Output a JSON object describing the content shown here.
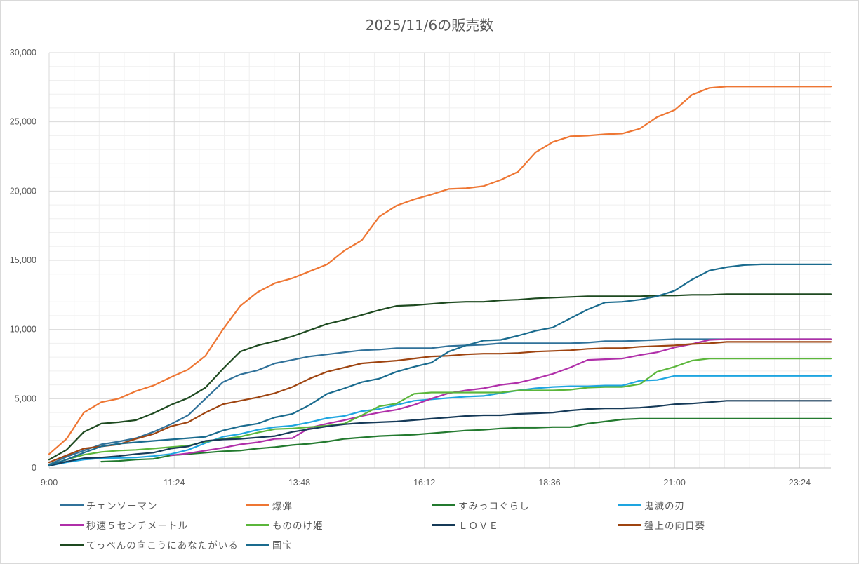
{
  "chart_data": {
    "type": "line",
    "title": "2025/11/6の販売数",
    "xlabel": "",
    "ylabel": "",
    "ylim": [
      0,
      30000
    ],
    "yticks": [
      "0",
      "5,000",
      "10,000",
      "15,000",
      "20,000",
      "25,000",
      "30,000"
    ],
    "xticks": [
      "9:00",
      "11:24",
      "13:48",
      "16:12",
      "18:36",
      "21:00",
      "23:24"
    ],
    "xlim": [
      "9:00",
      "24:00"
    ],
    "grid": true,
    "legend_position": "bottom",
    "x": [
      "9:00",
      "9:20",
      "9:40",
      "10:00",
      "10:20",
      "10:40",
      "11:00",
      "11:20",
      "11:40",
      "12:00",
      "12:20",
      "12:40",
      "13:00",
      "13:20",
      "13:40",
      "14:00",
      "14:20",
      "14:40",
      "15:00",
      "15:20",
      "15:40",
      "16:00",
      "16:20",
      "16:40",
      "17:00",
      "17:20",
      "17:40",
      "18:00",
      "18:20",
      "18:40",
      "19:00",
      "19:20",
      "19:40",
      "20:00",
      "20:20",
      "20:40",
      "21:00",
      "21:20",
      "21:40",
      "22:00",
      "22:20",
      "22:40",
      "23:00",
      "23:20",
      "23:40",
      "24:00"
    ],
    "series": [
      {
        "name": "チェンソーマン",
        "color": "#31729a",
        "values": [
          250,
          800,
          1250,
          1700,
          1900,
          2150,
          2600,
          3150,
          3800,
          5000,
          6200,
          6750,
          7050,
          7550,
          7800,
          8050,
          8200,
          8350,
          8500,
          8550,
          8650,
          8650,
          8650,
          8800,
          8850,
          8900,
          9000,
          9000,
          9000,
          9000,
          9000,
          9050,
          9150,
          9150,
          9200,
          9250,
          9300,
          9300,
          9300,
          9300,
          9300,
          9300,
          9300,
          9300,
          9300,
          9300
        ]
      },
      {
        "name": "爆弾",
        "color": "#ee7633",
        "values": [
          1000,
          2100,
          4000,
          4750,
          5000,
          5550,
          5950,
          6550,
          7100,
          8100,
          10000,
          11700,
          12700,
          13350,
          13700,
          14200,
          14700,
          15700,
          16450,
          18150,
          18950,
          19400,
          19750,
          20150,
          20200,
          20350,
          20800,
          21400,
          22800,
          23550,
          23950,
          24000,
          24100,
          24150,
          24500,
          25350,
          25850,
          26950,
          27450,
          27550,
          27550,
          27550,
          27550,
          27550,
          27550,
          27550
        ]
      },
      {
        "name": "すみっコぐらし",
        "color": "#237a2f",
        "values": [
          null,
          null,
          null,
          450,
          500,
          600,
          650,
          900,
          1000,
          1100,
          1200,
          1250,
          1400,
          1500,
          1650,
          1750,
          1900,
          2100,
          2200,
          2300,
          2350,
          2400,
          2500,
          2600,
          2700,
          2750,
          2850,
          2900,
          2900,
          2950,
          2950,
          3200,
          3350,
          3500,
          3550,
          3550,
          3550,
          3550,
          3550,
          3550,
          3550,
          3550,
          3550,
          3550,
          3550,
          3550
        ]
      },
      {
        "name": "鬼滅の刃",
        "color": "#1ea5e0",
        "values": [
          150,
          400,
          600,
          700,
          720,
          750,
          850,
          1000,
          1300,
          1800,
          2250,
          2450,
          2750,
          2950,
          3050,
          3300,
          3600,
          3750,
          4100,
          4250,
          4550,
          4850,
          4950,
          5050,
          5150,
          5200,
          5400,
          5600,
          5750,
          5850,
          5900,
          5900,
          5950,
          5950,
          6300,
          6350,
          6650,
          6650,
          6650,
          6650,
          6650,
          6650,
          6650,
          6650,
          6650,
          6650
        ]
      },
      {
        "name": "秒速５センチメートル",
        "color": "#b02fa9",
        "values": [
          null,
          null,
          null,
          null,
          null,
          null,
          null,
          900,
          1050,
          1250,
          1450,
          1700,
          1850,
          2100,
          2150,
          2900,
          3200,
          3450,
          3750,
          4000,
          4200,
          4550,
          5000,
          5400,
          5600,
          5750,
          6000,
          6150,
          6450,
          6800,
          7250,
          7800,
          7850,
          7900,
          8150,
          8350,
          8700,
          8950,
          9250,
          9300,
          9300,
          9300,
          9300,
          9300,
          9300,
          9300
        ]
      },
      {
        "name": "もののけ姫",
        "color": "#5bb63b",
        "values": [
          200,
          600,
          950,
          1150,
          1250,
          1300,
          1400,
          1500,
          1600,
          1900,
          2100,
          2250,
          2550,
          2800,
          2850,
          2950,
          3050,
          3200,
          3800,
          4450,
          4650,
          5350,
          5450,
          5450,
          5450,
          5450,
          5450,
          5600,
          5600,
          5600,
          5650,
          5800,
          5850,
          5850,
          6050,
          6950,
          7300,
          7750,
          7900,
          7900,
          7900,
          7900,
          7900,
          7900,
          7900,
          7900
        ]
      },
      {
        "name": "ＬＯＶＥ",
        "color": "#163a58",
        "values": [
          150,
          450,
          700,
          750,
          850,
          1000,
          1100,
          1400,
          1550,
          1950,
          2050,
          2100,
          2200,
          2300,
          2600,
          2800,
          3000,
          3150,
          3250,
          3300,
          3350,
          3450,
          3550,
          3650,
          3750,
          3800,
          3800,
          3900,
          3950,
          4000,
          4150,
          4250,
          4300,
          4300,
          4350,
          4450,
          4600,
          4650,
          4750,
          4850,
          4850,
          4850,
          4850,
          4850,
          4850,
          4850
        ]
      },
      {
        "name": "盤上の向日葵",
        "color": "#9e4410",
        "values": [
          400,
          900,
          1400,
          1550,
          1700,
          2100,
          2450,
          3000,
          3300,
          4000,
          4600,
          4850,
          5100,
          5400,
          5850,
          6450,
          6950,
          7250,
          7550,
          7650,
          7750,
          7900,
          8050,
          8100,
          8200,
          8250,
          8250,
          8300,
          8400,
          8450,
          8500,
          8600,
          8650,
          8650,
          8750,
          8800,
          8850,
          8950,
          9000,
          9100,
          9100,
          9100,
          9100,
          9100,
          9100,
          9100
        ]
      },
      {
        "name": "てっぺんの向こうにあなたがいる",
        "color": "#1e4a20",
        "values": [
          600,
          1300,
          2600,
          3200,
          3300,
          3450,
          3950,
          4550,
          5050,
          5800,
          7150,
          8400,
          8850,
          9150,
          9500,
          9950,
          10400,
          10700,
          11050,
          11400,
          11700,
          11750,
          11850,
          11950,
          12000,
          12000,
          12100,
          12150,
          12250,
          12300,
          12350,
          12400,
          12400,
          12400,
          12400,
          12450,
          12450,
          12500,
          12500,
          12550,
          12550,
          12550,
          12550,
          12550,
          12550,
          12550
        ]
      },
      {
        "name": "国宝",
        "color": "#1a6b8e",
        "values": [
          200,
          600,
          1100,
          1550,
          1750,
          1850,
          1950,
          2050,
          2150,
          2250,
          2700,
          3000,
          3200,
          3650,
          3900,
          4550,
          5350,
          5750,
          6200,
          6450,
          6950,
          7300,
          7600,
          8400,
          8850,
          9200,
          9250,
          9550,
          9900,
          10150,
          10800,
          11450,
          11950,
          12000,
          12150,
          12400,
          12800,
          13600,
          14250,
          14500,
          14650,
          14700,
          14700,
          14700,
          14700,
          14700
        ]
      }
    ]
  }
}
